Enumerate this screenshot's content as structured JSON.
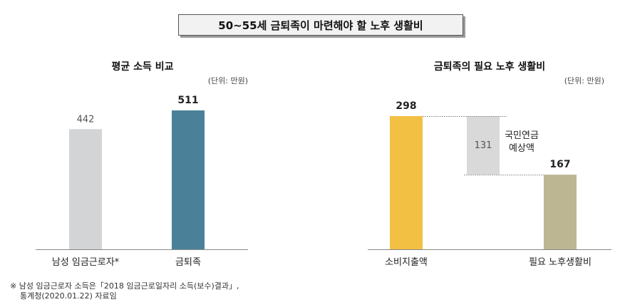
{
  "title": "50~55세 금퇴족이 마련해야 할 노후 생활비",
  "footnote": {
    "line1": "※ 남성 임금근로자 소득은「2018 임금근로일자리 소득(보수)결과」,",
    "line2": "통계청(2020.01.22) 자료임"
  },
  "chart_data": [
    {
      "type": "bar",
      "title": "평균 소득 비교",
      "unit_label": "(단위: 만원)",
      "categories": [
        "남성 임금근로자*",
        "금퇴족"
      ],
      "values": [
        442,
        511
      ],
      "colors": [
        "#d3d4d6",
        "#4a8199"
      ],
      "value_label_weights": [
        "normal",
        "bold"
      ],
      "ylim": [
        0,
        560
      ]
    },
    {
      "type": "bar",
      "title": "금퇴족의 필요 노후 생활비",
      "unit_label": "(단위: 만원)",
      "categories": [
        "소비지출액",
        "필요 노후생활비"
      ],
      "values": [
        298,
        167
      ],
      "colors": [
        "#f2c043",
        "#bdb693"
      ],
      "deduction": {
        "value": 131,
        "label_lines": [
          "국민연금",
          "예상액"
        ],
        "color": "#d9d9d9"
      },
      "ylim": [
        0,
        327
      ]
    }
  ]
}
